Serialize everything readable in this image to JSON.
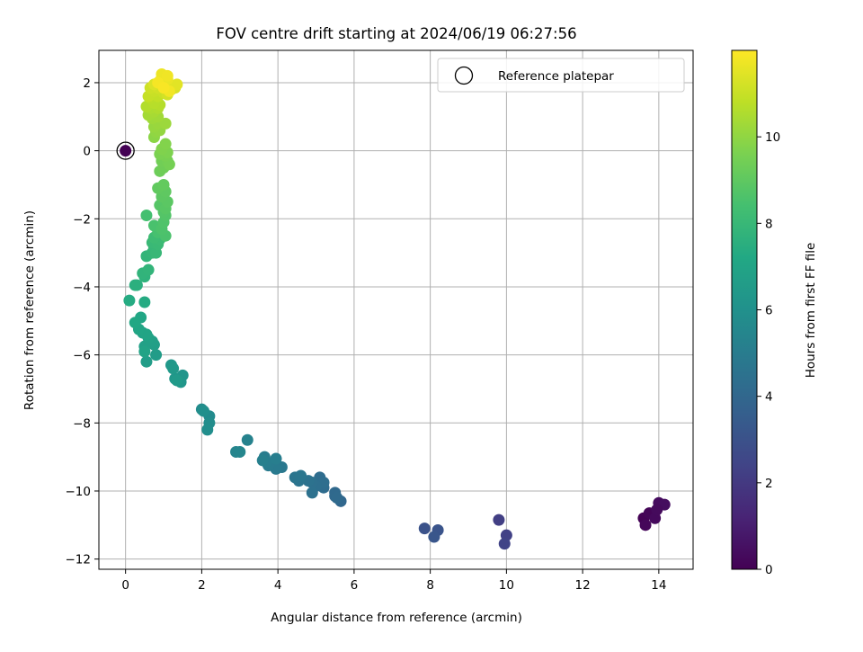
{
  "chart_data": {
    "type": "scatter",
    "title": "FOV centre drift starting at 2024/06/19 06:27:56",
    "xlabel": "Angular distance from reference (arcmin)",
    "ylabel": "Rotation from reference (arcmin)",
    "xlim": [
      -0.7,
      14.9
    ],
    "ylim": [
      -12.3,
      2.95
    ],
    "xticks": [
      "0",
      "2",
      "4",
      "6",
      "8",
      "10",
      "12",
      "14"
    ],
    "yticks": [
      "2",
      "0",
      "−2",
      "−4",
      "−6",
      "−8",
      "−10",
      "−12"
    ],
    "grid": true,
    "legend": {
      "position": "top-right",
      "label": "Reference platepar",
      "marker": "open-circle"
    },
    "colorbar": {
      "label": "Hours from first FF file",
      "colormap": "viridis",
      "range": [
        0,
        12
      ],
      "ticks": [
        "0",
        "2",
        "4",
        "6",
        "8",
        "10"
      ]
    },
    "reference_point": {
      "x": 0,
      "y": 0,
      "hours": 0
    },
    "points": [
      {
        "x": 13.6,
        "y": -10.8,
        "h": 0.05
      },
      {
        "x": 13.75,
        "y": -10.65,
        "h": 0.12
      },
      {
        "x": 13.65,
        "y": -11.0,
        "h": 0.2
      },
      {
        "x": 13.9,
        "y": -10.8,
        "h": 0.28
      },
      {
        "x": 14.0,
        "y": -10.35,
        "h": 0.35
      },
      {
        "x": 14.15,
        "y": -10.4,
        "h": 0.4
      },
      {
        "x": 13.95,
        "y": -10.55,
        "h": 0.3
      },
      {
        "x": 9.8,
        "y": -10.85,
        "h": 2.2
      },
      {
        "x": 10.0,
        "y": -11.3,
        "h": 2.3
      },
      {
        "x": 9.95,
        "y": -11.55,
        "h": 2.4
      },
      {
        "x": 7.85,
        "y": -11.1,
        "h": 3.0
      },
      {
        "x": 8.2,
        "y": -11.15,
        "h": 3.1
      },
      {
        "x": 8.1,
        "y": -11.35,
        "h": 3.2
      },
      {
        "x": 5.65,
        "y": -10.3,
        "h": 4.0
      },
      {
        "x": 5.5,
        "y": -10.15,
        "h": 4.05
      },
      {
        "x": 5.5,
        "y": -10.05,
        "h": 4.1
      },
      {
        "x": 5.55,
        "y": -10.2,
        "h": 4.15
      },
      {
        "x": 5.2,
        "y": -9.9,
        "h": 4.2
      },
      {
        "x": 5.1,
        "y": -9.6,
        "h": 4.25
      },
      {
        "x": 5.2,
        "y": -9.75,
        "h": 4.3
      },
      {
        "x": 5.0,
        "y": -9.85,
        "h": 4.35
      },
      {
        "x": 4.9,
        "y": -9.75,
        "h": 4.4
      },
      {
        "x": 4.9,
        "y": -10.05,
        "h": 4.45
      },
      {
        "x": 4.8,
        "y": -9.7,
        "h": 4.5
      },
      {
        "x": 4.55,
        "y": -9.7,
        "h": 4.6
      },
      {
        "x": 4.45,
        "y": -9.6,
        "h": 4.65
      },
      {
        "x": 4.6,
        "y": -9.55,
        "h": 4.7
      },
      {
        "x": 4.1,
        "y": -9.3,
        "h": 4.8
      },
      {
        "x": 3.9,
        "y": -9.15,
        "h": 4.85
      },
      {
        "x": 3.95,
        "y": -9.35,
        "h": 4.9
      },
      {
        "x": 3.75,
        "y": -9.25,
        "h": 4.95
      },
      {
        "x": 3.65,
        "y": -9.0,
        "h": 5.0
      },
      {
        "x": 3.7,
        "y": -9.15,
        "h": 5.05
      },
      {
        "x": 3.95,
        "y": -9.05,
        "h": 5.1
      },
      {
        "x": 3.6,
        "y": -9.1,
        "h": 5.15
      },
      {
        "x": 3.2,
        "y": -8.5,
        "h": 5.3
      },
      {
        "x": 2.9,
        "y": -8.85,
        "h": 5.4
      },
      {
        "x": 3.0,
        "y": -8.85,
        "h": 5.45
      },
      {
        "x": 2.2,
        "y": -7.8,
        "h": 5.7
      },
      {
        "x": 2.0,
        "y": -7.6,
        "h": 5.75
      },
      {
        "x": 2.2,
        "y": -8.0,
        "h": 5.8
      },
      {
        "x": 2.15,
        "y": -8.2,
        "h": 5.85
      },
      {
        "x": 2.05,
        "y": -7.65,
        "h": 5.9
      },
      {
        "x": 1.5,
        "y": -6.6,
        "h": 6.2
      },
      {
        "x": 1.45,
        "y": -6.8,
        "h": 6.25
      },
      {
        "x": 1.3,
        "y": -6.7,
        "h": 6.3
      },
      {
        "x": 1.2,
        "y": -6.3,
        "h": 6.35
      },
      {
        "x": 1.25,
        "y": -6.4,
        "h": 6.4
      },
      {
        "x": 1.35,
        "y": -6.75,
        "h": 6.45
      },
      {
        "x": 0.8,
        "y": -6.0,
        "h": 6.6
      },
      {
        "x": 0.55,
        "y": -6.2,
        "h": 6.65
      },
      {
        "x": 0.75,
        "y": -5.7,
        "h": 6.7
      },
      {
        "x": 0.7,
        "y": -5.6,
        "h": 6.75
      },
      {
        "x": 0.5,
        "y": -5.75,
        "h": 6.8
      },
      {
        "x": 0.6,
        "y": -5.5,
        "h": 6.85
      },
      {
        "x": 0.45,
        "y": -5.35,
        "h": 6.9
      },
      {
        "x": 0.5,
        "y": -5.9,
        "h": 6.95
      },
      {
        "x": 0.55,
        "y": -5.4,
        "h": 7.0
      },
      {
        "x": 0.35,
        "y": -5.25,
        "h": 7.05
      },
      {
        "x": 0.4,
        "y": -4.9,
        "h": 7.1
      },
      {
        "x": 0.25,
        "y": -5.05,
        "h": 7.15
      },
      {
        "x": 0.5,
        "y": -4.45,
        "h": 7.3
      },
      {
        "x": 0.1,
        "y": -4.4,
        "h": 7.35
      },
      {
        "x": 0.25,
        "y": -3.95,
        "h": 7.5
      },
      {
        "x": 0.3,
        "y": -3.95,
        "h": 7.55
      },
      {
        "x": 0.5,
        "y": -3.7,
        "h": 7.7
      },
      {
        "x": 0.45,
        "y": -3.6,
        "h": 7.75
      },
      {
        "x": 0.6,
        "y": -3.5,
        "h": 7.8
      },
      {
        "x": 0.55,
        "y": -3.1,
        "h": 7.85
      },
      {
        "x": 0.7,
        "y": -3.0,
        "h": 7.9
      },
      {
        "x": 0.75,
        "y": -2.85,
        "h": 7.95
      },
      {
        "x": 0.8,
        "y": -3.0,
        "h": 8.0
      },
      {
        "x": 0.7,
        "y": -2.7,
        "h": 8.05
      },
      {
        "x": 0.85,
        "y": -2.75,
        "h": 8.1
      },
      {
        "x": 0.9,
        "y": -2.6,
        "h": 8.15
      },
      {
        "x": 0.75,
        "y": -2.55,
        "h": 8.2
      },
      {
        "x": 0.55,
        "y": -1.9,
        "h": 8.4
      },
      {
        "x": 0.85,
        "y": -2.4,
        "h": 8.45
      },
      {
        "x": 0.75,
        "y": -2.2,
        "h": 8.5
      },
      {
        "x": 1.05,
        "y": -2.5,
        "h": 8.55
      },
      {
        "x": 0.95,
        "y": -2.3,
        "h": 8.6
      },
      {
        "x": 1.0,
        "y": -2.1,
        "h": 8.65
      },
      {
        "x": 1.05,
        "y": -1.9,
        "h": 8.7
      },
      {
        "x": 1.0,
        "y": -1.8,
        "h": 8.75
      },
      {
        "x": 0.9,
        "y": -1.6,
        "h": 8.8
      },
      {
        "x": 1.05,
        "y": -1.7,
        "h": 8.85
      },
      {
        "x": 1.1,
        "y": -1.5,
        "h": 8.9
      },
      {
        "x": 0.95,
        "y": -1.35,
        "h": 8.95
      },
      {
        "x": 1.05,
        "y": -1.2,
        "h": 9.0
      },
      {
        "x": 0.85,
        "y": -1.1,
        "h": 9.05
      },
      {
        "x": 1.0,
        "y": -1.0,
        "h": 9.1
      },
      {
        "x": 0.9,
        "y": -0.6,
        "h": 9.3
      },
      {
        "x": 1.0,
        "y": -0.5,
        "h": 9.35
      },
      {
        "x": 0.95,
        "y": -0.3,
        "h": 9.4
      },
      {
        "x": 1.1,
        "y": -0.3,
        "h": 9.45
      },
      {
        "x": 1.15,
        "y": -0.4,
        "h": 9.5
      },
      {
        "x": 1.05,
        "y": -0.15,
        "h": 9.55
      },
      {
        "x": 0.9,
        "y": -0.1,
        "h": 9.6
      },
      {
        "x": 1.1,
        "y": -0.05,
        "h": 9.65
      },
      {
        "x": 0.95,
        "y": 0.05,
        "h": 9.7
      },
      {
        "x": 1.05,
        "y": 0.2,
        "h": 9.75
      },
      {
        "x": 0.75,
        "y": 0.4,
        "h": 9.9
      },
      {
        "x": 0.8,
        "y": 0.55,
        "h": 10.0
      },
      {
        "x": 0.9,
        "y": 0.6,
        "h": 10.05
      },
      {
        "x": 0.75,
        "y": 0.7,
        "h": 10.1
      },
      {
        "x": 0.85,
        "y": 0.8,
        "h": 10.15
      },
      {
        "x": 1.05,
        "y": 0.8,
        "h": 10.2
      },
      {
        "x": 0.7,
        "y": 0.95,
        "h": 10.25
      },
      {
        "x": 0.85,
        "y": 1.0,
        "h": 10.3
      },
      {
        "x": 0.6,
        "y": 1.05,
        "h": 10.35
      },
      {
        "x": 0.75,
        "y": 1.15,
        "h": 10.4
      },
      {
        "x": 0.65,
        "y": 1.25,
        "h": 10.5
      },
      {
        "x": 0.85,
        "y": 1.25,
        "h": 10.55
      },
      {
        "x": 0.55,
        "y": 1.3,
        "h": 10.6
      },
      {
        "x": 0.9,
        "y": 1.35,
        "h": 10.65
      },
      {
        "x": 0.75,
        "y": 1.4,
        "h": 10.7
      },
      {
        "x": 0.65,
        "y": 1.55,
        "h": 10.75
      },
      {
        "x": 0.85,
        "y": 1.6,
        "h": 10.9
      },
      {
        "x": 0.6,
        "y": 1.6,
        "h": 10.95
      },
      {
        "x": 0.75,
        "y": 1.75,
        "h": 11.0
      },
      {
        "x": 1.0,
        "y": 1.7,
        "h": 11.05
      },
      {
        "x": 0.65,
        "y": 1.85,
        "h": 11.1
      },
      {
        "x": 0.85,
        "y": 1.85,
        "h": 11.15
      },
      {
        "x": 1.1,
        "y": 1.65,
        "h": 11.2
      },
      {
        "x": 1.2,
        "y": 1.8,
        "h": 11.25
      },
      {
        "x": 1.3,
        "y": 1.85,
        "h": 11.3
      },
      {
        "x": 0.75,
        "y": 1.95,
        "h": 11.35
      },
      {
        "x": 0.95,
        "y": 1.95,
        "h": 11.4
      },
      {
        "x": 1.05,
        "y": 1.95,
        "h": 11.45
      },
      {
        "x": 1.35,
        "y": 1.95,
        "h": 11.5
      },
      {
        "x": 0.9,
        "y": 2.05,
        "h": 11.6
      },
      {
        "x": 1.1,
        "y": 2.1,
        "h": 11.65
      },
      {
        "x": 0.95,
        "y": 2.25,
        "h": 11.7
      },
      {
        "x": 1.1,
        "y": 2.2,
        "h": 11.75
      },
      {
        "x": 1.15,
        "y": 1.75,
        "h": 11.8
      },
      {
        "x": 0.85,
        "y": 2.0,
        "h": 11.85
      },
      {
        "x": 1.0,
        "y": 1.85,
        "h": 11.9
      }
    ]
  }
}
